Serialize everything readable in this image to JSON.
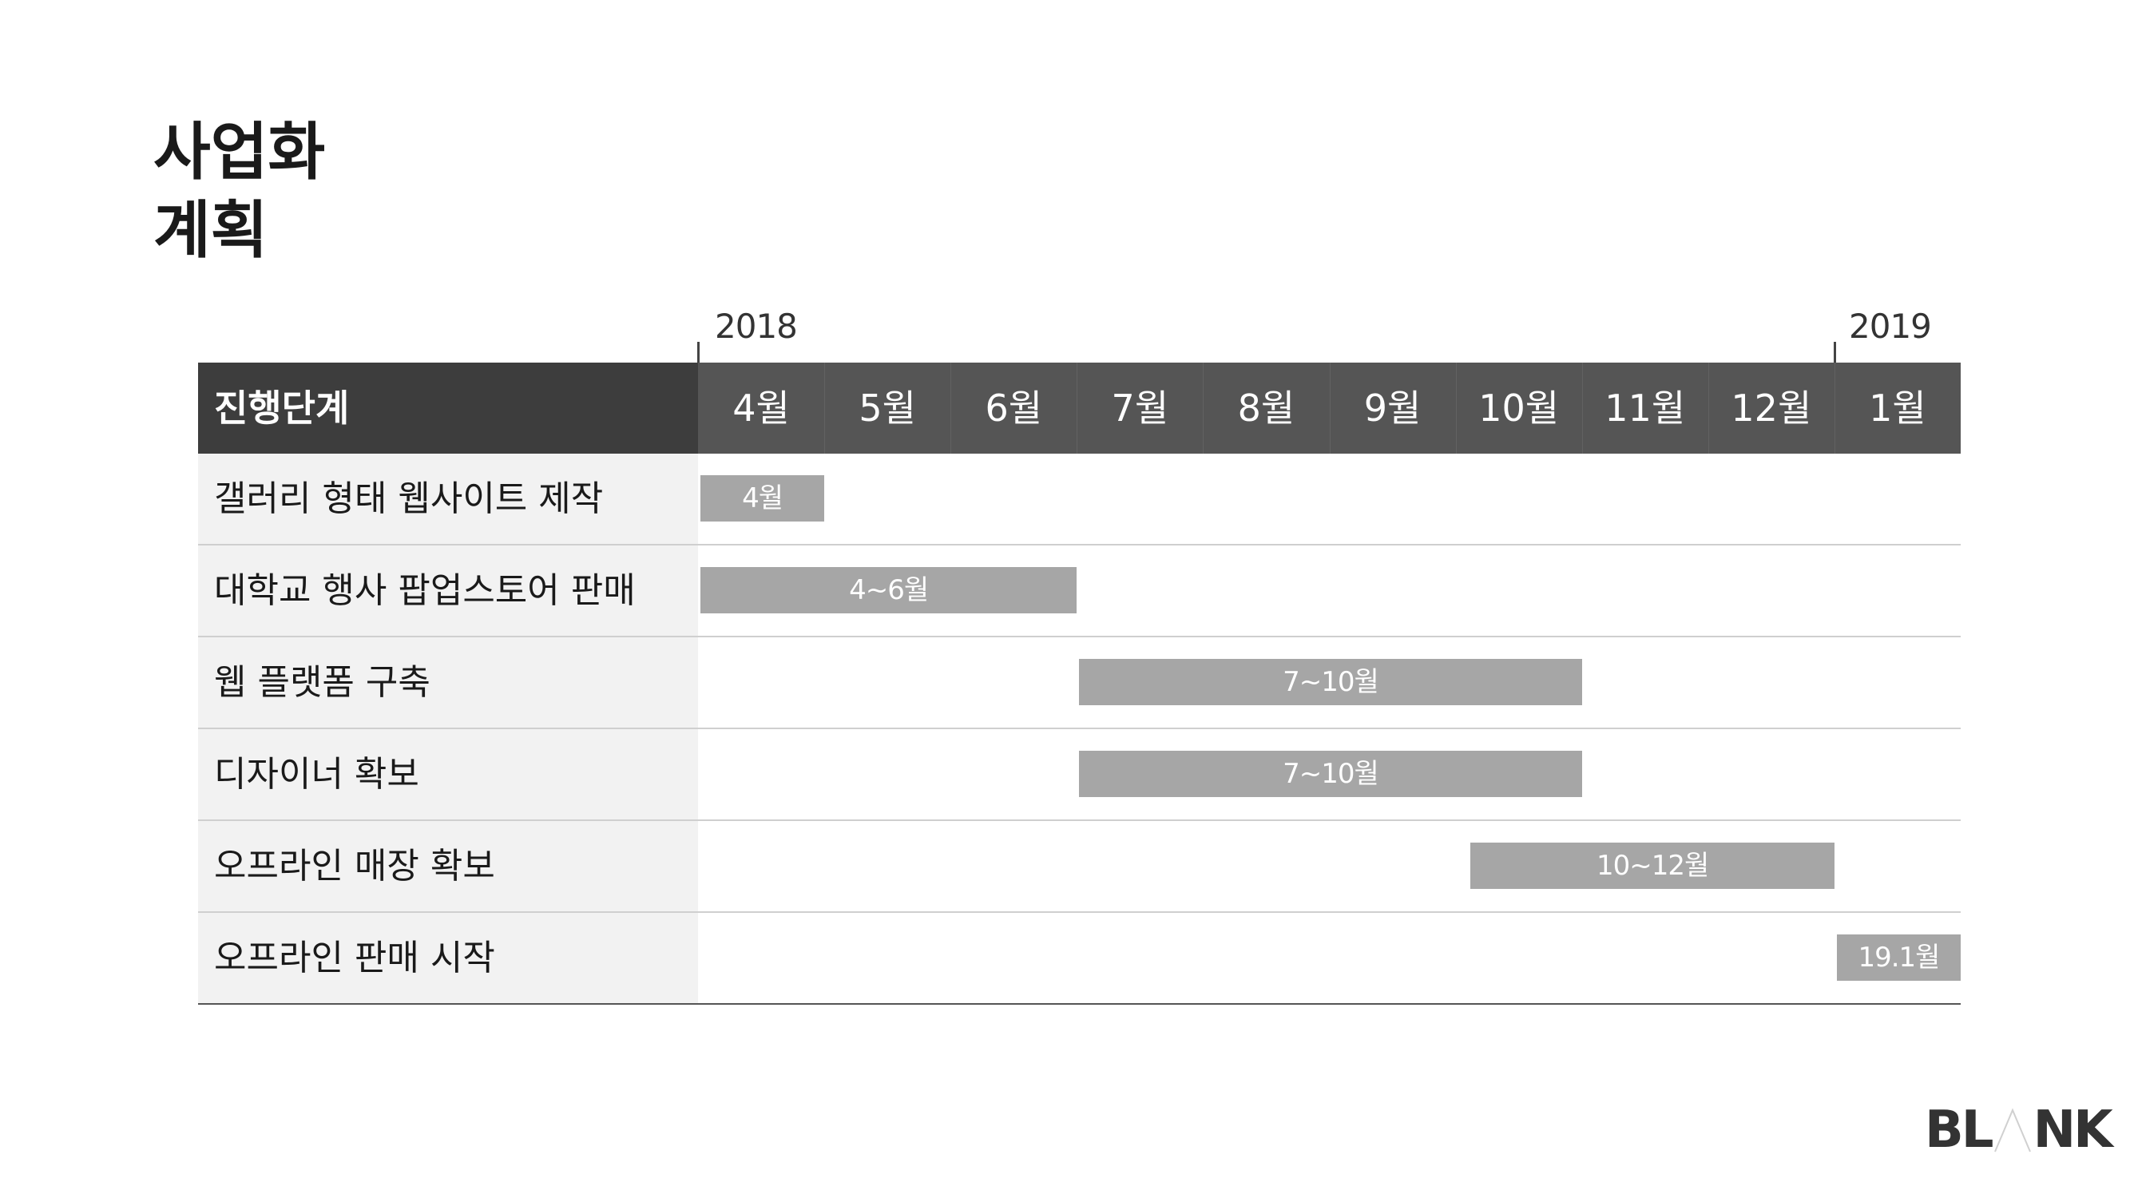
{
  "title_lines": [
    "사업화",
    "계획"
  ],
  "chart_data": {
    "type": "gantt",
    "year_markers": [
      "2018",
      "2019"
    ],
    "stage_header": "진행단계",
    "months": [
      "4월",
      "5월",
      "6월",
      "7월",
      "8월",
      "9월",
      "10월",
      "11월",
      "12월",
      "1월"
    ],
    "tasks": [
      {
        "name": "갤러리 형태 웹사이트 제작",
        "start": 0,
        "end": 1,
        "label": "4월"
      },
      {
        "name": "대학교 행사 팝업스토어 판매",
        "start": 0,
        "end": 3,
        "label": "4~6월"
      },
      {
        "name": "웹 플랫폼 구축",
        "start": 3,
        "end": 7,
        "label": "7~10월"
      },
      {
        "name": "디자이너 확보",
        "start": 3,
        "end": 7,
        "label": "7~10월"
      },
      {
        "name": "오프라인 매장 확보",
        "start": 6.1,
        "end": 9,
        "label": "10~12월"
      },
      {
        "name": "오프라인 판매 시작",
        "start": 9,
        "end": 10,
        "label": "19.1월"
      }
    ]
  },
  "logo_text": {
    "left": "BL",
    "right": "NK"
  },
  "colors": {
    "header_bg": "#555555",
    "stage_bg": "#3d3d3d",
    "bar": "#a6a6a6",
    "label_bg": "#f2f2f2"
  }
}
